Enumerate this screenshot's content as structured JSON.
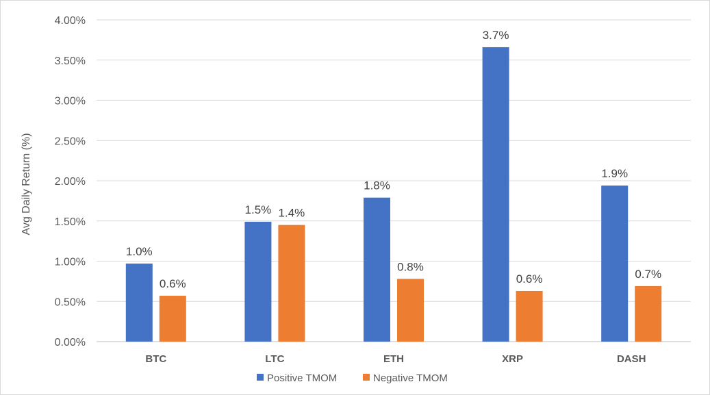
{
  "chart_data": {
    "type": "bar",
    "title": "",
    "xlabel": "",
    "ylabel": "Avg Daily Return (%)",
    "ylim": [
      0,
      4.0
    ],
    "yticks": [
      0.0,
      0.5,
      1.0,
      1.5,
      2.0,
      2.5,
      3.0,
      3.5,
      4.0
    ],
    "ytick_labels": [
      "0.00%",
      "0.50%",
      "1.00%",
      "1.50%",
      "2.00%",
      "2.50%",
      "3.00%",
      "3.50%",
      "4.00%"
    ],
    "grid": "horizontal",
    "legend_position": "bottom",
    "categories": [
      "BTC",
      "LTC",
      "ETH",
      "XRP",
      "DASH"
    ],
    "series": [
      {
        "name": "Positive TMOM",
        "color": "#4472C4",
        "values": [
          0.97,
          1.49,
          1.79,
          3.66,
          1.94
        ],
        "labels": [
          "1.0%",
          "1.5%",
          "1.8%",
          "3.7%",
          "1.9%"
        ]
      },
      {
        "name": "Negative TMOM",
        "color": "#ED7D31",
        "values": [
          0.57,
          1.45,
          0.78,
          0.63,
          0.69
        ],
        "labels": [
          "0.6%",
          "1.4%",
          "0.8%",
          "0.6%",
          "0.7%"
        ]
      }
    ]
  }
}
